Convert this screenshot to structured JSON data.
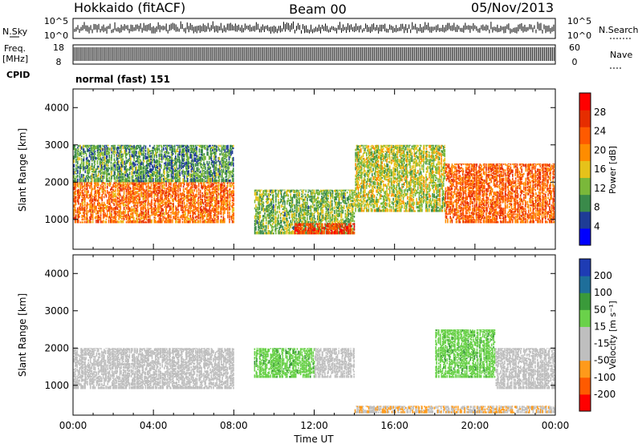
{
  "header": {
    "station": "Hokkaido (fitACF)",
    "beam": "Beam 00",
    "date": "05/Nov/2013"
  },
  "panels": {
    "nsky": {
      "label": "N.Sky",
      "ticks": [
        "10^5",
        "10^0"
      ]
    },
    "nsearch": {
      "label": "N.Search",
      "ticks": [
        "10^5",
        "10^0"
      ]
    },
    "freq": {
      "label_line1": "Freq.",
      "label_line2": "[MHz]",
      "ticks": [
        "18",
        "8"
      ]
    },
    "nave": {
      "label": "Nave",
      "ticks": [
        "60",
        "0"
      ]
    },
    "cpid": {
      "label": "CPID",
      "value": "normal (fast) 151"
    }
  },
  "colors": {
    "power_scale": [
      "#0000ff",
      "#1e3c96",
      "#3a8a4a",
      "#7ab83a",
      "#e6c21a",
      "#ff8c00",
      "#ff5a00",
      "#e62d00",
      "#ff0000"
    ],
    "velocity_scale": [
      "#ff0000",
      "#ff5a00",
      "#ff9a1a",
      "#bfbfbf",
      "#bfbfbf",
      "#6ad14a",
      "#3a9a3a",
      "#1e6e9a",
      "#1e3cb4"
    ],
    "ground_scatter": "#bebebe"
  },
  "chart_data": [
    {
      "type": "heatmap",
      "name": "power",
      "xlabel": "Time UT",
      "ylabel": "Slant Range [km]",
      "x_ticks": [
        "00:00",
        "04:00",
        "08:00",
        "12:00",
        "16:00",
        "20:00",
        "00:00"
      ],
      "xlim_hours": [
        0,
        24
      ],
      "y_ticks": [
        1000,
        2000,
        3000,
        4000
      ],
      "ylim_km": [
        200,
        4500
      ],
      "colorbar": {
        "label": "Power [dB]",
        "ticks": [
          4,
          8,
          12,
          16,
          20,
          24,
          28
        ],
        "range": [
          0,
          32
        ]
      },
      "regions": [
        {
          "t": [
            0,
            8
          ],
          "r": [
            900,
            2000
          ],
          "level_db": 22
        },
        {
          "t": [
            0,
            8
          ],
          "r": [
            2000,
            3000
          ],
          "level_db": 10
        },
        {
          "t": [
            9,
            14
          ],
          "r": [
            600,
            1800
          ],
          "level_db": 12
        },
        {
          "t": [
            11,
            14
          ],
          "r": [
            600,
            900
          ],
          "level_db": 26
        },
        {
          "t": [
            14,
            18.5
          ],
          "r": [
            1200,
            3000
          ],
          "level_db": 14
        },
        {
          "t": [
            18.5,
            24
          ],
          "r": [
            900,
            2500
          ],
          "level_db": 23
        }
      ]
    },
    {
      "type": "heatmap",
      "name": "velocity",
      "xlabel": "Time UT",
      "ylabel": "Slant Range [km]",
      "x_ticks": [
        "00:00",
        "04:00",
        "08:00",
        "12:00",
        "16:00",
        "20:00",
        "00:00"
      ],
      "xlim_hours": [
        0,
        24
      ],
      "y_ticks": [
        1000,
        2000,
        3000,
        4000
      ],
      "ylim_km": [
        200,
        4500
      ],
      "colorbar": {
        "label": "Velocity [m s⁻¹]",
        "ticks": [
          200,
          100,
          50,
          15,
          -15,
          -50,
          -100,
          -200
        ],
        "range": [
          -250,
          250
        ]
      },
      "regions": [
        {
          "t": [
            0,
            8
          ],
          "r": [
            900,
            2000
          ],
          "velocity_ms": 0,
          "ground_scatter": true
        },
        {
          "t": [
            9,
            12
          ],
          "r": [
            1200,
            2000
          ],
          "velocity_ms": 60
        },
        {
          "t": [
            12,
            14
          ],
          "r": [
            1200,
            2000
          ],
          "velocity_ms": -40
        },
        {
          "t": [
            18,
            21
          ],
          "r": [
            1200,
            2500
          ],
          "velocity_ms": 60
        },
        {
          "t": [
            21,
            24
          ],
          "r": [
            900,
            2000
          ],
          "velocity_ms": 0,
          "ground_scatter": true
        },
        {
          "t": [
            14,
            24
          ],
          "r": [
            250,
            450
          ],
          "velocity_ms": -80
        }
      ]
    }
  ]
}
